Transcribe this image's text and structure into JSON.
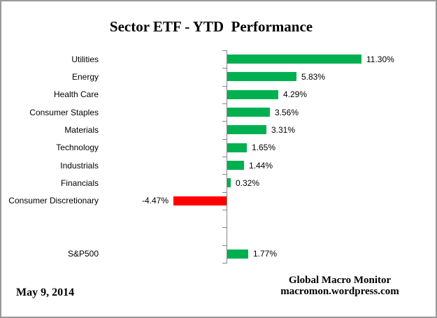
{
  "title": "Sector ETF - YTD  Performance",
  "footer": {
    "date": "May 9, 2014",
    "attribution_line1": "Global Macro Monitor",
    "attribution_line2": "macromon.wordpress.com"
  },
  "chart_data": {
    "type": "bar",
    "orientation": "horizontal",
    "title": "Sector ETF - YTD  Performance",
    "categories": [
      "Utilities",
      "Energy",
      "Health Care",
      "Consumer Staples",
      "Materials",
      "Technology",
      "Industrials",
      "Financials",
      "Consumer Discretionary",
      "",
      "",
      "S&P500"
    ],
    "values": [
      11.3,
      5.83,
      4.29,
      3.56,
      3.31,
      1.65,
      1.44,
      0.32,
      -4.47,
      null,
      null,
      1.77
    ],
    "value_labels": [
      "11.30%",
      "5.83%",
      "4.29%",
      "3.56%",
      "3.31%",
      "1.65%",
      "1.44%",
      "0.32%",
      "-4.47%",
      "",
      "",
      "1.77%"
    ],
    "positive_color": "#00B050",
    "negative_color": "#FF0000",
    "axis_color": "#848484",
    "xlabel": "",
    "ylabel": "",
    "grid": false,
    "legend": false
  }
}
